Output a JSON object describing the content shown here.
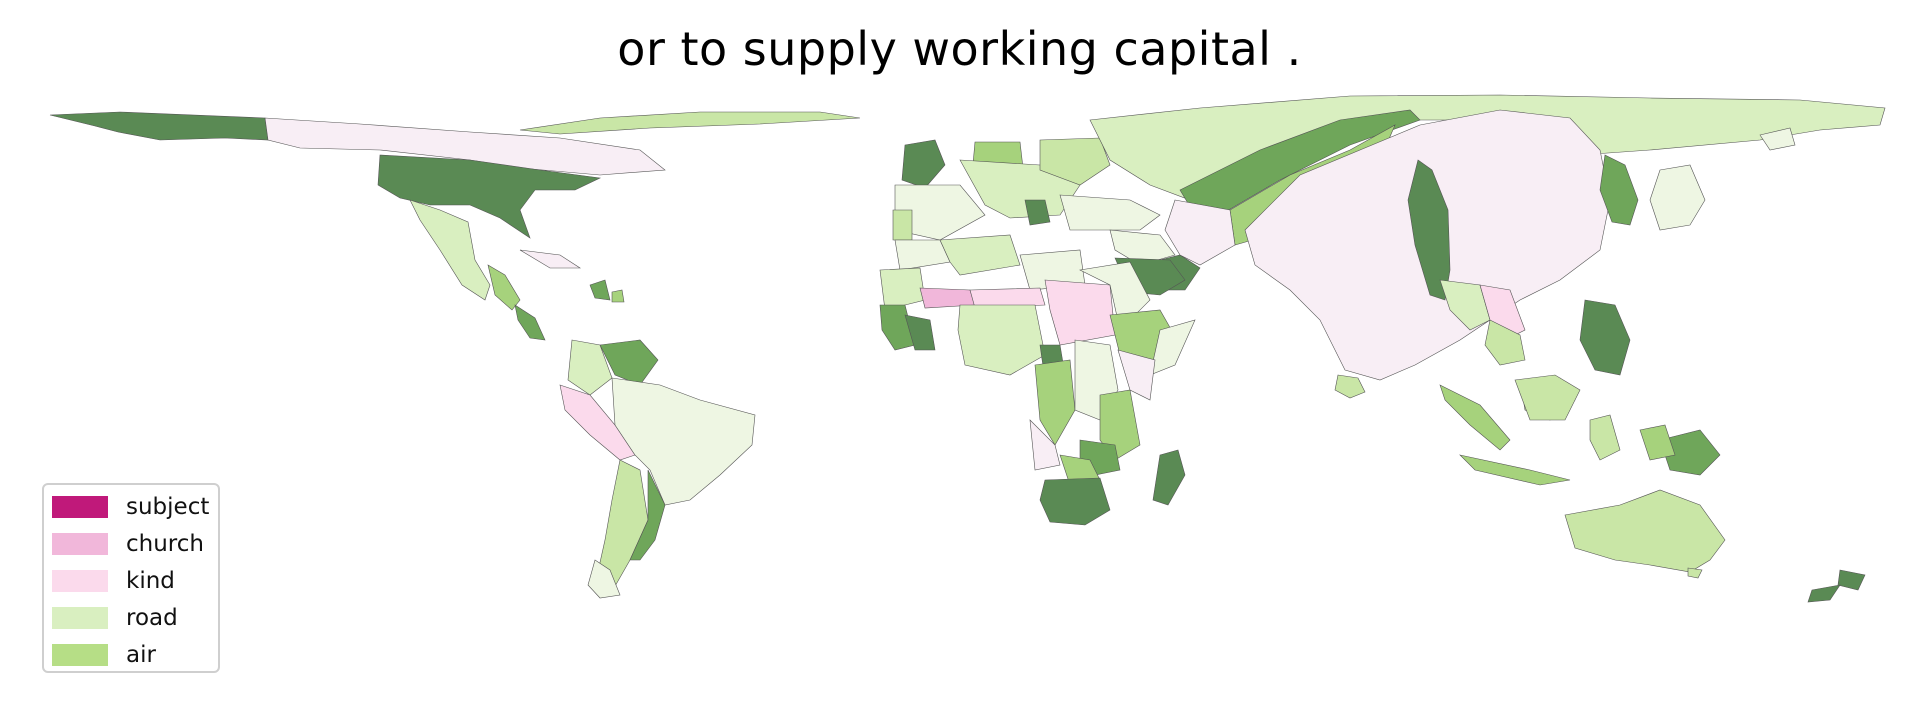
{
  "title": "or to supply working capital .",
  "legend": {
    "items": [
      {
        "label": "subject",
        "color": "#c0197a"
      },
      {
        "label": "church",
        "color": "#f1b7da"
      },
      {
        "label": "kind",
        "color": "#fbdaec"
      },
      {
        "label": "road",
        "color": "#d9efc0"
      },
      {
        "label": "air",
        "color": "#b6de86"
      }
    ]
  },
  "palette": {
    "darkest": "#5a8a54",
    "dark": "#6fa65a",
    "mid": "#a6d27c",
    "air": "#b6de86",
    "light": "#c9e6a6",
    "road": "#d9efc0",
    "paler": "#eef6e3",
    "pinkish": "#f8eef5",
    "kind": "#fbdaec",
    "church": "#f1b7da"
  }
}
